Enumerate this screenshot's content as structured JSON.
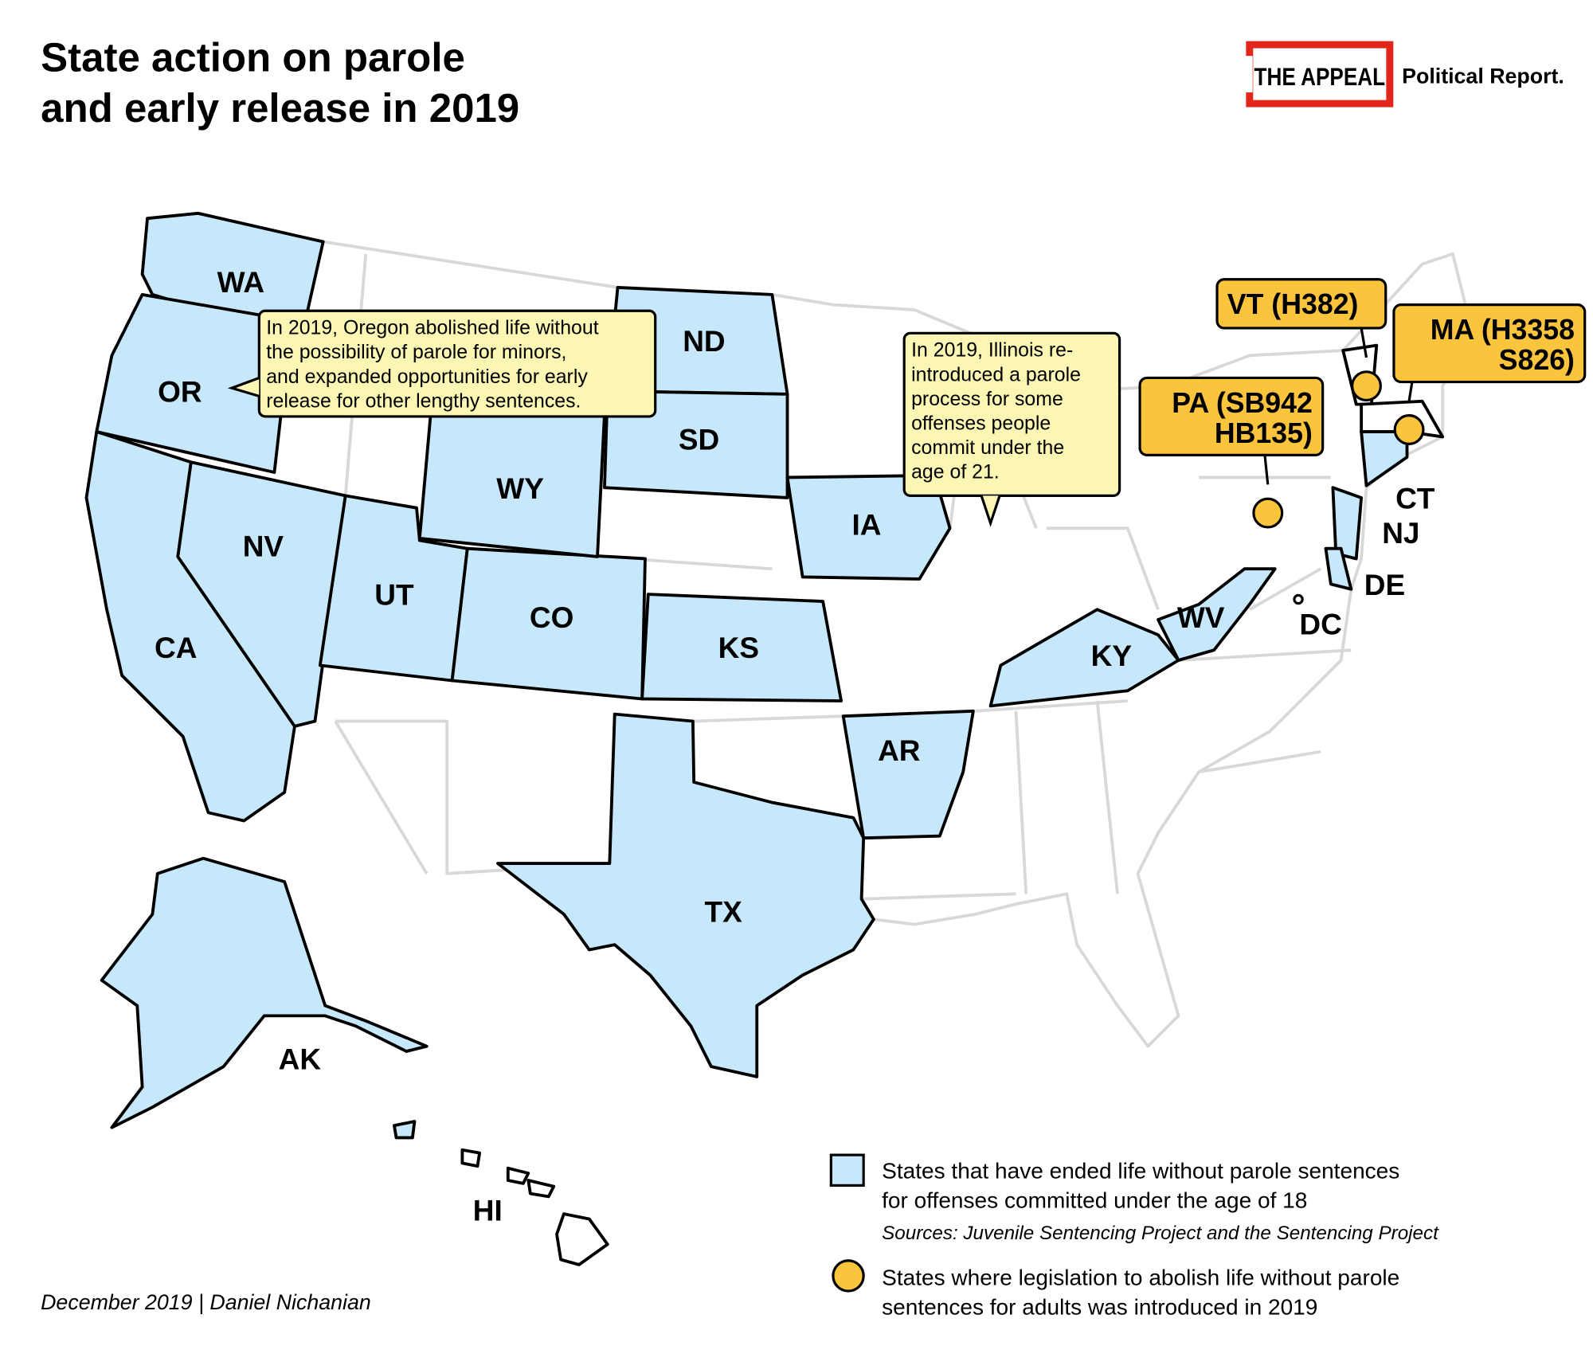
{
  "header": {
    "title": [
      "State action on parole",
      "and early release in 2019"
    ],
    "brand": "THE APPEAL",
    "brand_sub": "Political Report."
  },
  "states": [
    "WA",
    "OR",
    "CA",
    "NV",
    "UT",
    "CO",
    "WY",
    "ND",
    "SD",
    "IA",
    "KS",
    "AR",
    "TX",
    "KY",
    "WV",
    "CT",
    "NJ",
    "DE",
    "AK",
    "HI"
  ],
  "other_labels": [
    "DC"
  ],
  "annotations": [
    {
      "text": [
        "In 2019, Oregon abolished life without",
        "the possibility of parole for minors,",
        "and expanded opportunities for early",
        "release for other lengthy sentences."
      ]
    },
    {
      "text": [
        "In 2019, Illinois re-",
        "introduced a parole",
        "process for some",
        "offenses people",
        "commit under the",
        "age of 21."
      ]
    }
  ],
  "markers": [
    {
      "label": [
        "VT (H382)"
      ]
    },
    {
      "label": [
        "MA (H3358",
        "S826)"
      ]
    },
    {
      "label": [
        "PA (SB942",
        "HB135)"
      ]
    }
  ],
  "legend": [
    {
      "text": [
        "States that have ended life without parole sentences",
        "for offenses committed under the age of 18"
      ],
      "note": "Sources: Juvenile Sentencing Project and the Sentencing Project"
    },
    {
      "text": [
        "States where legislation to abolish life without parole",
        "sentences for adults was introduced in 2019"
      ]
    }
  ],
  "credit": "December 2019 | Daniel Nichanian"
}
